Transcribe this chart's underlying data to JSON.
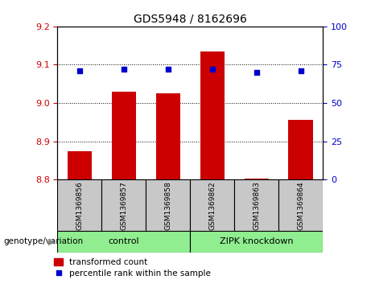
{
  "title": "GDS5948 / 8162696",
  "samples": [
    "GSM1369856",
    "GSM1369857",
    "GSM1369858",
    "GSM1369862",
    "GSM1369863",
    "GSM1369864"
  ],
  "bar_values": [
    8.875,
    9.03,
    9.025,
    9.135,
    8.802,
    8.955
  ],
  "percentile_values": [
    71,
    72,
    72,
    72,
    70,
    71
  ],
  "ylim_left": [
    8.8,
    9.2
  ],
  "ylim_right": [
    0,
    100
  ],
  "yticks_left": [
    8.8,
    8.9,
    9.0,
    9.1,
    9.2
  ],
  "yticks_right": [
    0,
    25,
    50,
    75,
    100
  ],
  "bar_color": "#cc0000",
  "dot_color": "#0000cc",
  "bar_bottom": 8.8,
  "group_label": "genotype/variation",
  "legend_bar_label": "transformed count",
  "legend_dot_label": "percentile rank within the sample",
  "tick_color_left": "#cc0000",
  "tick_color_right": "#0000cc",
  "plot_bg_color": "#ffffff",
  "gray_box_color": "#c8c8c8",
  "green_box_color": "#90ee90",
  "control_label": "control",
  "zipk_label": "ZIPK knockdown"
}
